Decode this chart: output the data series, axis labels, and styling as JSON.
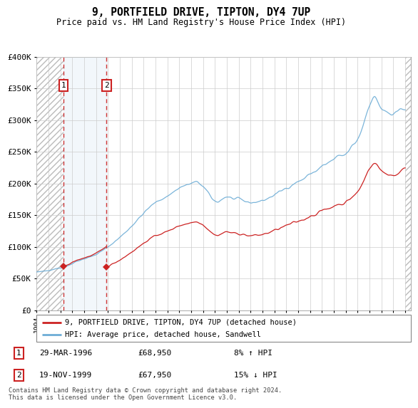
{
  "title": "9, PORTFIELD DRIVE, TIPTON, DY4 7UP",
  "subtitle": "Price paid vs. HM Land Registry's House Price Index (HPI)",
  "legend_label_red": "9, PORTFIELD DRIVE, TIPTON, DY4 7UP (detached house)",
  "legend_label_blue": "HPI: Average price, detached house, Sandwell",
  "footnote": "Contains HM Land Registry data © Crown copyright and database right 2024.\nThis data is licensed under the Open Government Licence v3.0.",
  "transactions": [
    {
      "num": 1,
      "date": "29-MAR-1996",
      "price": 68950,
      "year": 1996.24,
      "label": "8% ↑ HPI"
    },
    {
      "num": 2,
      "date": "19-NOV-1999",
      "price": 67950,
      "year": 1999.88,
      "label": "15% ↓ HPI"
    }
  ],
  "ylim": [
    0,
    400000
  ],
  "xlim_start": 1994.0,
  "xlim_end": 2025.5,
  "hpi_color": "#6dadd6",
  "price_color": "#cc2222",
  "background_color": "#ffffff"
}
